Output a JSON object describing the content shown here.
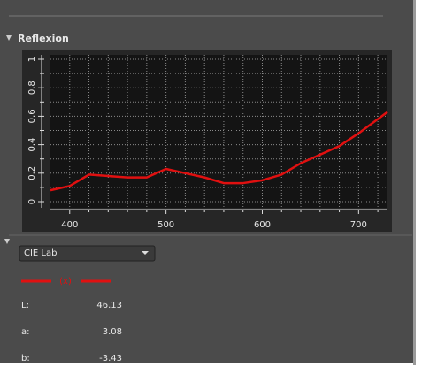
{
  "panel": {
    "title": "Reflexion",
    "dropdown": "CIE Lab",
    "lab": [
      {
        "label": "L:",
        "value": 46.13
      },
      {
        "label": "a:",
        "value": 3.08
      },
      {
        "label": "b:",
        "value": -3.43
      }
    ]
  },
  "chart_data": {
    "type": "line",
    "x": [
      380,
      400,
      420,
      440,
      460,
      480,
      500,
      520,
      540,
      560,
      580,
      600,
      620,
      640,
      660,
      680,
      700,
      720,
      730
    ],
    "series": [
      {
        "name": "(x)",
        "color": "#e01010",
        "values": [
          0.08,
          0.11,
          0.19,
          0.18,
          0.17,
          0.17,
          0.23,
          0.2,
          0.17,
          0.13,
          0.13,
          0.15,
          0.19,
          0.27,
          0.33,
          0.39,
          0.48,
          0.58,
          0.63
        ]
      }
    ],
    "xlim": [
      380,
      730
    ],
    "xticks": [
      400,
      500,
      600,
      700
    ],
    "xminor": [
      420,
      440,
      460,
      480,
      520,
      540,
      560,
      580,
      620,
      640,
      660,
      680,
      720
    ],
    "ylim": [
      0,
      1
    ],
    "yticks": [
      0,
      {
        "value": 0.2,
        "label": "0,2"
      },
      {
        "value": 0.4,
        "label": "0,4"
      },
      {
        "value": 0.6,
        "label": "0,6"
      },
      {
        "value": 0.8,
        "label": "0,8"
      },
      1
    ],
    "yminor": [
      0.1,
      0.3,
      0.5,
      0.7,
      0.9
    ],
    "grid": true
  }
}
